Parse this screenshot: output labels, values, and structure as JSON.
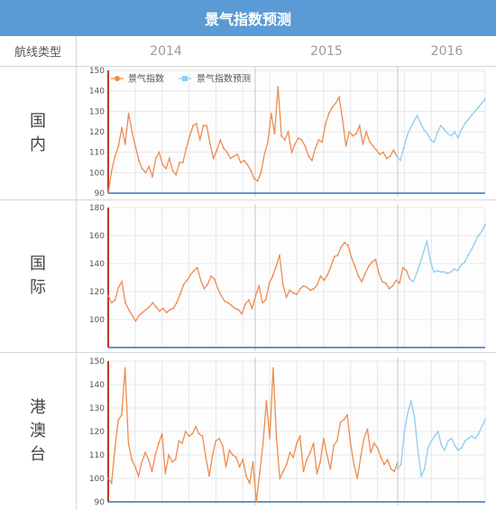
{
  "title": "景气指数预测",
  "header": {
    "type_label": "航线类型",
    "years": [
      "2014",
      "2015",
      "2016"
    ]
  },
  "rows": [
    {
      "label_lines": [
        "国",
        "内"
      ]
    },
    {
      "label_lines": [
        "国",
        "际"
      ]
    },
    {
      "label_lines": [
        "港",
        "澳",
        "台"
      ]
    }
  ],
  "colors": {
    "title_bg": "#5b9bd5",
    "actual": "#f08b4f",
    "forecast": "#8ecdf0",
    "axis_red": "#c0392b",
    "axis_blue": "#2e75b6"
  },
  "chart_data": [
    {
      "type": "line",
      "row": "国内",
      "legend": [
        "景气指数",
        "景气指数预测"
      ],
      "ylim": [
        90,
        150
      ],
      "yticks": [
        90,
        100,
        110,
        120,
        130,
        140,
        150
      ],
      "series": [
        {
          "name": "景气指数",
          "values": [
            90,
            101,
            108,
            113,
            122,
            114,
            129,
            120,
            113,
            106,
            102,
            100,
            103,
            98,
            107,
            110,
            104,
            102,
            107,
            101,
            99,
            105,
            105,
            112,
            118,
            123,
            124,
            116,
            123,
            123,
            114,
            107,
            111,
            116,
            112,
            110,
            107,
            108,
            109,
            105,
            106,
            104,
            101,
            97,
            96,
            100,
            109,
            115,
            129,
            119,
            142,
            118,
            116,
            120,
            110,
            114,
            117,
            116,
            113,
            108,
            106,
            112,
            116,
            115,
            124,
            129,
            132,
            134,
            137,
            126,
            113,
            120,
            118,
            119,
            123,
            114,
            120,
            115,
            113,
            111,
            109,
            110,
            107,
            108,
            111,
            108
          ]
        },
        {
          "name": "景气指数预测",
          "start_index": 85,
          "values": [
            108,
            106,
            112,
            118,
            122,
            125,
            128,
            124,
            121,
            119,
            116,
            115,
            120,
            123,
            121,
            119,
            118,
            120,
            117,
            121,
            124,
            126,
            128,
            130,
            132,
            134,
            136
          ]
        }
      ]
    },
    {
      "type": "line",
      "row": "国际",
      "ylim": [
        80,
        180
      ],
      "yticks": [
        100,
        120,
        140,
        160,
        180
      ],
      "series": [
        {
          "name": "景气指数",
          "values": [
            117,
            112,
            114,
            123,
            127,
            112,
            107,
            103,
            99,
            103,
            105,
            107,
            109,
            112,
            109,
            106,
            108,
            105,
            107,
            108,
            112,
            118,
            125,
            128,
            132,
            135,
            137,
            128,
            122,
            125,
            131,
            129,
            122,
            117,
            113,
            112,
            110,
            108,
            107,
            104,
            111,
            114,
            108,
            117,
            124,
            112,
            114,
            126,
            131,
            138,
            146,
            125,
            116,
            121,
            119,
            118,
            122,
            124,
            123,
            121,
            122,
            125,
            131,
            128,
            132,
            138,
            145,
            146,
            152,
            155,
            153,
            144,
            138,
            131,
            127,
            133,
            138,
            141,
            143,
            133,
            127,
            126,
            122,
            124,
            128,
            126,
            137,
            135,
            129
          ]
        },
        {
          "name": "景气指数预测",
          "start_index": 88,
          "values": [
            129,
            127,
            133,
            140,
            148,
            156,
            142,
            134,
            135,
            134,
            134,
            133,
            134,
            136,
            135,
            139,
            141,
            146,
            150,
            155,
            160,
            163,
            168
          ]
        }
      ]
    },
    {
      "type": "line",
      "row": "港澳台",
      "ylim": [
        90,
        150
      ],
      "yticks": [
        90,
        100,
        110,
        120,
        130,
        140,
        150
      ],
      "series": [
        {
          "name": "景气指数",
          "values": [
            100,
            98,
            113,
            125,
            127,
            147,
            115,
            108,
            105,
            101,
            107,
            111,
            108,
            103,
            110,
            115,
            119,
            102,
            110,
            107,
            108,
            116,
            115,
            120,
            118,
            119,
            122,
            119,
            118,
            109,
            101,
            110,
            116,
            117,
            114,
            105,
            112,
            110,
            109,
            105,
            108,
            101,
            98,
            107,
            90,
            102,
            115,
            133,
            117,
            147,
            117,
            100,
            103,
            106,
            111,
            109,
            115,
            118,
            103,
            108,
            111,
            115,
            102,
            107,
            117,
            110,
            104,
            114,
            116,
            124,
            125,
            127,
            115,
            106,
            100,
            109,
            117,
            121,
            111,
            115,
            113,
            109,
            106,
            108,
            104,
            103,
            107
          ]
        },
        {
          "name": "景气指数预测",
          "start_index": 86,
          "values": [
            104,
            106,
            120,
            128,
            133,
            126,
            112,
            101,
            104,
            113,
            116,
            118,
            120,
            114,
            112,
            116,
            117,
            114,
            112,
            113,
            116,
            117,
            118,
            117,
            119,
            122,
            125
          ]
        }
      ]
    }
  ]
}
